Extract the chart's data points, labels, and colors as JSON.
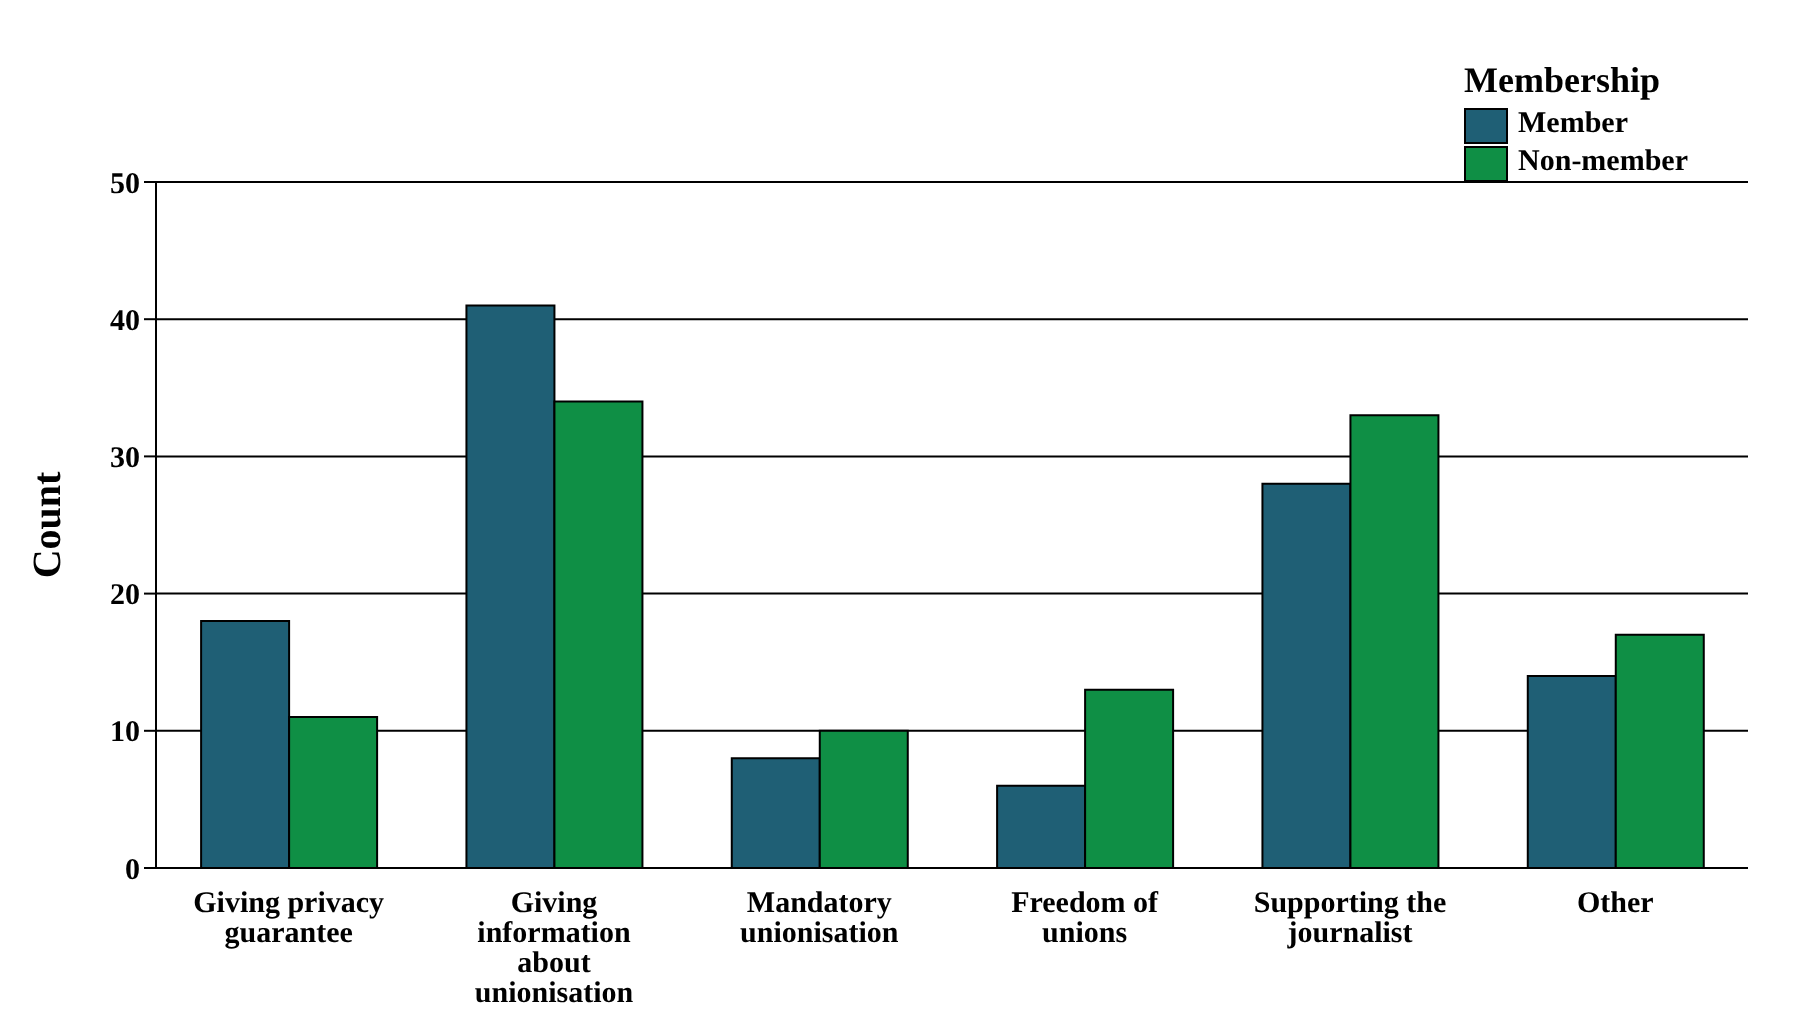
{
  "chart_data": {
    "type": "bar",
    "ylabel": "Count",
    "legend_title": "Membership",
    "legend": "top right",
    "grid": "y",
    "categories": [
      "Giving privacy guarantee",
      "Giving information about unionisation",
      "Mandatory unionisation",
      "Freedom of unions",
      "Supporting the journalist",
      "Other"
    ],
    "series": [
      {
        "name": "Member",
        "color": "#1f5f75",
        "values": [
          18,
          41,
          8,
          6,
          28,
          14
        ]
      },
      {
        "name": "Non-member",
        "color": "#0f8f45",
        "values": [
          11,
          34,
          10,
          13,
          33,
          17
        ]
      }
    ],
    "ylim": [
      0,
      50
    ],
    "yticks": [
      0,
      10,
      20,
      30,
      40,
      50
    ]
  }
}
